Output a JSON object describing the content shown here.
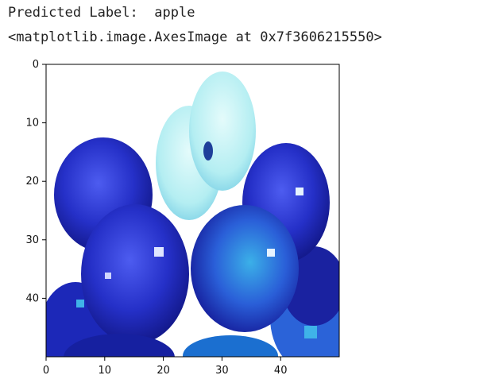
{
  "output": {
    "predicted_prefix": "Predicted Label:",
    "predicted_value": "apple",
    "repr_line": "<matplotlib.image.AxesImage at 0x7f3606215550>"
  },
  "chart_data": {
    "type": "image",
    "image_size": [
      50,
      50
    ],
    "xlim": [
      0,
      50
    ],
    "ylim": [
      50,
      0
    ],
    "xticks": [
      "0",
      "10",
      "20",
      "30",
      "40"
    ],
    "yticks": [
      "0",
      "10",
      "20",
      "30",
      "40"
    ],
    "image_description_colors": {
      "dark_blue": "#1a1aa8",
      "mid_blue": "#2f3fe0",
      "light_cyan": "#bff0f2",
      "teal": "#2aa6d6"
    }
  }
}
